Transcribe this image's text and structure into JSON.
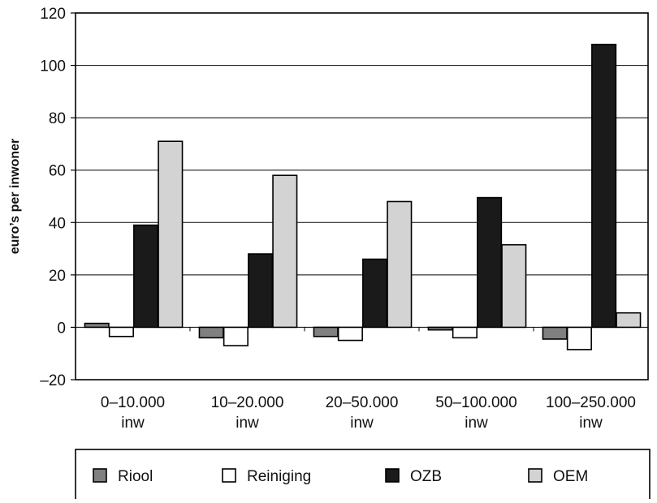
{
  "chart_data": {
    "type": "bar",
    "ylabel": "euro’s per inwoner",
    "xlabel": "",
    "ylim": [
      -20,
      120
    ],
    "yticks": [
      120,
      100,
      80,
      60,
      40,
      20,
      0,
      -20
    ],
    "ytick_labels": [
      "120",
      "100",
      "80",
      "60",
      "40",
      "20",
      "0",
      "–20"
    ],
    "grid": true,
    "legend_position": "bottom",
    "categories": [
      [
        "0–10.000",
        "inw"
      ],
      [
        "10–20.000",
        "inw"
      ],
      [
        "20–50.000",
        "inw"
      ],
      [
        "50–100.000",
        "inw"
      ],
      [
        "100–250.000",
        "inw"
      ]
    ],
    "series": [
      {
        "name": "Riool",
        "color": "#808080",
        "values": [
          1.5,
          -4,
          -3.5,
          -1,
          -4.5
        ]
      },
      {
        "name": "Reiniging",
        "color": "#ffffff",
        "values": [
          -3.5,
          -7,
          -5,
          -4,
          -8.5
        ]
      },
      {
        "name": "OZB",
        "color": "#1a1a1a",
        "values": [
          39,
          28,
          26,
          49.5,
          108
        ]
      },
      {
        "name": "OEM",
        "color": "#d3d3d3",
        "values": [
          71,
          58,
          48,
          31.5,
          5.5
        ]
      }
    ]
  }
}
